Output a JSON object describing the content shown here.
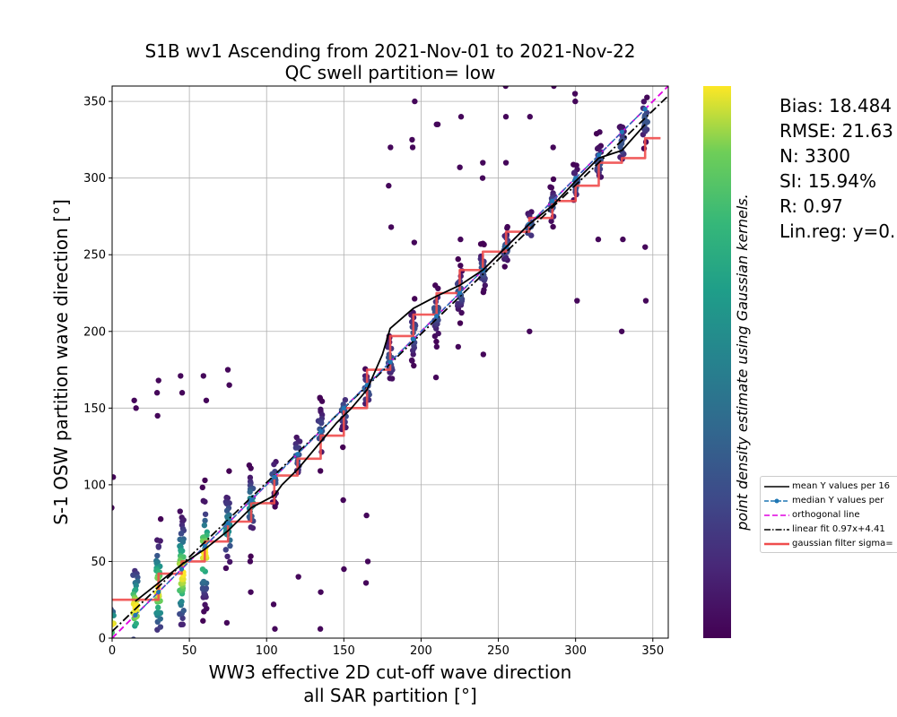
{
  "chart_data": {
    "type": "scatter",
    "title": "S1B wv1 Ascending from 2021-Nov-01 to 2021-Nov-22",
    "subtitle": "QC swell partition= low",
    "xlabel_line1": "WW3 effective 2D cut-off wave direction",
    "xlabel_line2": "all SAR partition [°]",
    "ylabel": "S-1 OSW partition wave direction [°]",
    "xlim": [
      0,
      360
    ],
    "ylim": [
      0,
      360
    ],
    "xticks": [
      "0",
      "50",
      "100",
      "150",
      "200",
      "250",
      "300",
      "350"
    ],
    "yticks": [
      "0",
      "50",
      "100",
      "150",
      "200",
      "250",
      "300",
      "350"
    ],
    "grid": true,
    "colorbar_label": "point density estimate using Gaussian kernels.",
    "colormap": "viridis",
    "x_columns": [
      0,
      15,
      30,
      45,
      60,
      75,
      90,
      105,
      120,
      135,
      150,
      165,
      180,
      195,
      210,
      225,
      240,
      255,
      270,
      285,
      300,
      315,
      330,
      345
    ],
    "scatter_clusters": [
      {
        "x": 0,
        "y_center": 8,
        "y_spread": 18,
        "n": 14
      },
      {
        "x": 15,
        "y_center": 20,
        "y_spread": 35,
        "n": 30
      },
      {
        "x": 30,
        "y_center": 32,
        "y_spread": 40,
        "n": 40
      },
      {
        "x": 45,
        "y_center": 42,
        "y_spread": 45,
        "n": 50
      },
      {
        "x": 60,
        "y_center": 56,
        "y_spread": 40,
        "n": 44
      },
      {
        "x": 75,
        "y_center": 72,
        "y_spread": 30,
        "n": 34
      },
      {
        "x": 90,
        "y_center": 88,
        "y_spread": 24,
        "n": 26
      },
      {
        "x": 105,
        "y_center": 104,
        "y_spread": 18,
        "n": 18
      },
      {
        "x": 120,
        "y_center": 118,
        "y_spread": 20,
        "n": 16
      },
      {
        "x": 135,
        "y_center": 134,
        "y_spread": 22,
        "n": 22
      },
      {
        "x": 150,
        "y_center": 148,
        "y_spread": 18,
        "n": 18
      },
      {
        "x": 165,
        "y_center": 162,
        "y_spread": 16,
        "n": 18
      },
      {
        "x": 180,
        "y_center": 182,
        "y_spread": 18,
        "n": 20
      },
      {
        "x": 195,
        "y_center": 198,
        "y_spread": 22,
        "n": 20
      },
      {
        "x": 210,
        "y_center": 212,
        "y_spread": 20,
        "n": 22
      },
      {
        "x": 225,
        "y_center": 226,
        "y_spread": 18,
        "n": 24
      },
      {
        "x": 240,
        "y_center": 240,
        "y_spread": 16,
        "n": 24
      },
      {
        "x": 255,
        "y_center": 255,
        "y_spread": 14,
        "n": 24
      },
      {
        "x": 270,
        "y_center": 268,
        "y_spread": 14,
        "n": 22
      },
      {
        "x": 285,
        "y_center": 282,
        "y_spread": 14,
        "n": 22
      },
      {
        "x": 300,
        "y_center": 296,
        "y_spread": 14,
        "n": 20
      },
      {
        "x": 315,
        "y_center": 310,
        "y_spread": 14,
        "n": 20
      },
      {
        "x": 330,
        "y_center": 322,
        "y_spread": 16,
        "n": 18
      },
      {
        "x": 345,
        "y_center": 338,
        "y_spread": 18,
        "n": 20
      }
    ],
    "series": [
      {
        "name": "mean Y values per 16",
        "color": "#000000",
        "style": "solid",
        "x": [
          15,
          30,
          45,
          60,
          75,
          90,
          105,
          110,
          120,
          135,
          145,
          155,
          165,
          175,
          180,
          195,
          210,
          225,
          240,
          255,
          270,
          285,
          300,
          315,
          330,
          345
        ],
        "y": [
          24,
          36,
          48,
          58,
          70,
          85,
          93,
          100,
          110,
          128,
          140,
          150,
          162,
          185,
          202,
          215,
          223,
          230,
          240,
          255,
          270,
          282,
          298,
          313,
          318,
          335
        ]
      },
      {
        "name": "median Y values per",
        "color": "#1f77b4",
        "style": "dashed-dot-markers",
        "x": [
          15,
          30,
          45,
          60,
          75,
          90,
          105,
          120,
          135,
          150,
          165,
          180,
          195,
          210,
          225,
          240,
          255,
          270,
          285,
          300,
          315,
          330,
          345
        ],
        "y": [
          15,
          30,
          45,
          60,
          75,
          90,
          105,
          120,
          135,
          150,
          165,
          180,
          195,
          210,
          225,
          240,
          255,
          270,
          285,
          300,
          315,
          330,
          345
        ]
      },
      {
        "name": "orthogonal line",
        "color": "#e000e0",
        "style": "dashed",
        "x": [
          0,
          360
        ],
        "y": [
          0,
          360
        ]
      },
      {
        "name": "linear fit 0.97x+4.41",
        "color": "#000000",
        "style": "dashdot",
        "x": [
          0,
          360
        ],
        "y": [
          4.41,
          353.61
        ]
      },
      {
        "name": "gaussian filter sigma=",
        "color": "#ef4d4d",
        "style": "step",
        "x": [
          0,
          30,
          30,
          45,
          45,
          60,
          60,
          75,
          75,
          90,
          90,
          105,
          105,
          120,
          120,
          135,
          135,
          150,
          150,
          165,
          165,
          180,
          180,
          195,
          195,
          210,
          210,
          225,
          225,
          240,
          240,
          255,
          255,
          270,
          270,
          285,
          285,
          300,
          300,
          315,
          315,
          330,
          330,
          345,
          345,
          355
        ],
        "y": [
          25,
          25,
          42,
          42,
          50,
          50,
          63,
          63,
          76,
          76,
          88,
          88,
          106,
          106,
          117,
          117,
          132,
          132,
          150,
          150,
          175,
          175,
          197,
          197,
          211,
          211,
          225,
          225,
          240,
          240,
          252,
          252,
          265,
          265,
          274,
          274,
          285,
          285,
          295,
          295,
          310,
          310,
          313,
          313,
          326,
          326
        ]
      }
    ],
    "outliers": [
      [
        0,
        105
      ],
      [
        0,
        85
      ],
      [
        15,
        155
      ],
      [
        15,
        150
      ],
      [
        30,
        168
      ],
      [
        30,
        160
      ],
      [
        30,
        145
      ],
      [
        45,
        171
      ],
      [
        45,
        160
      ],
      [
        60,
        171
      ],
      [
        60,
        155
      ],
      [
        75,
        175
      ],
      [
        75,
        165
      ],
      [
        90,
        30
      ],
      [
        90,
        50
      ],
      [
        75,
        10
      ],
      [
        105,
        6
      ],
      [
        105,
        22
      ],
      [
        135,
        6
      ],
      [
        120,
        40
      ],
      [
        135,
        30
      ],
      [
        150,
        45
      ],
      [
        150,
        90
      ],
      [
        165,
        36
      ],
      [
        165,
        80
      ],
      [
        165,
        50
      ],
      [
        180,
        320
      ],
      [
        180,
        295
      ],
      [
        180,
        268
      ],
      [
        195,
        325
      ],
      [
        195,
        320
      ],
      [
        195,
        258
      ],
      [
        210,
        335
      ],
      [
        210,
        335
      ],
      [
        210,
        190
      ],
      [
        225,
        340
      ],
      [
        225,
        307
      ],
      [
        225,
        190
      ],
      [
        240,
        310
      ],
      [
        240,
        300
      ],
      [
        240,
        185
      ],
      [
        255,
        360
      ],
      [
        255,
        340
      ],
      [
        270,
        340
      ],
      [
        270,
        200
      ],
      [
        285,
        360
      ],
      [
        285,
        320
      ],
      [
        300,
        350
      ],
      [
        300,
        220
      ],
      [
        315,
        260
      ],
      [
        330,
        260
      ],
      [
        345,
        255
      ],
      [
        330,
        200
      ],
      [
        345,
        220
      ],
      [
        300,
        355
      ],
      [
        225,
        260
      ],
      [
        195,
        350
      ],
      [
        255,
        310
      ],
      [
        315,
        330
      ],
      [
        210,
        170
      ]
    ],
    "stats": [
      "Bias: 18.484",
      "RMSE: 21.63",
      "N: 3300",
      "SI: 15.94%",
      "R: 0.97",
      "Lin.reg: y=0."
    ]
  }
}
